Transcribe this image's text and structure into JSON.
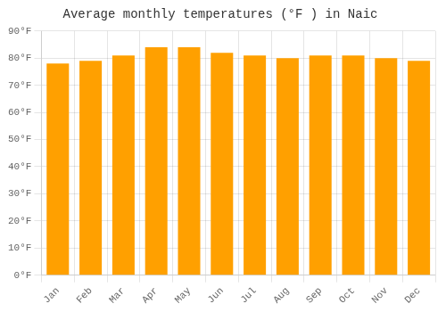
{
  "chart_data": {
    "type": "bar",
    "title": "Average monthly temperatures (°F ) in Naic",
    "categories": [
      "Jan",
      "Feb",
      "Mar",
      "Apr",
      "May",
      "Jun",
      "Jul",
      "Aug",
      "Sep",
      "Oct",
      "Nov",
      "Dec"
    ],
    "values": [
      78,
      79,
      81,
      84,
      84,
      82,
      81,
      80,
      81,
      81,
      80,
      79
    ],
    "color": "#FFA000",
    "ylim": [
      0,
      90
    ],
    "yticks": [
      {
        "value": 0,
        "label": "0°F"
      },
      {
        "value": 10,
        "label": "10°F"
      },
      {
        "value": 20,
        "label": "20°F"
      },
      {
        "value": 30,
        "label": "30°F"
      },
      {
        "value": 40,
        "label": "40°F"
      },
      {
        "value": 50,
        "label": "50°F"
      },
      {
        "value": 60,
        "label": "60°F"
      },
      {
        "value": 70,
        "label": "70°F"
      },
      {
        "value": 80,
        "label": "80°F"
      },
      {
        "value": 90,
        "label": "90°F"
      }
    ],
    "grid": true
  }
}
